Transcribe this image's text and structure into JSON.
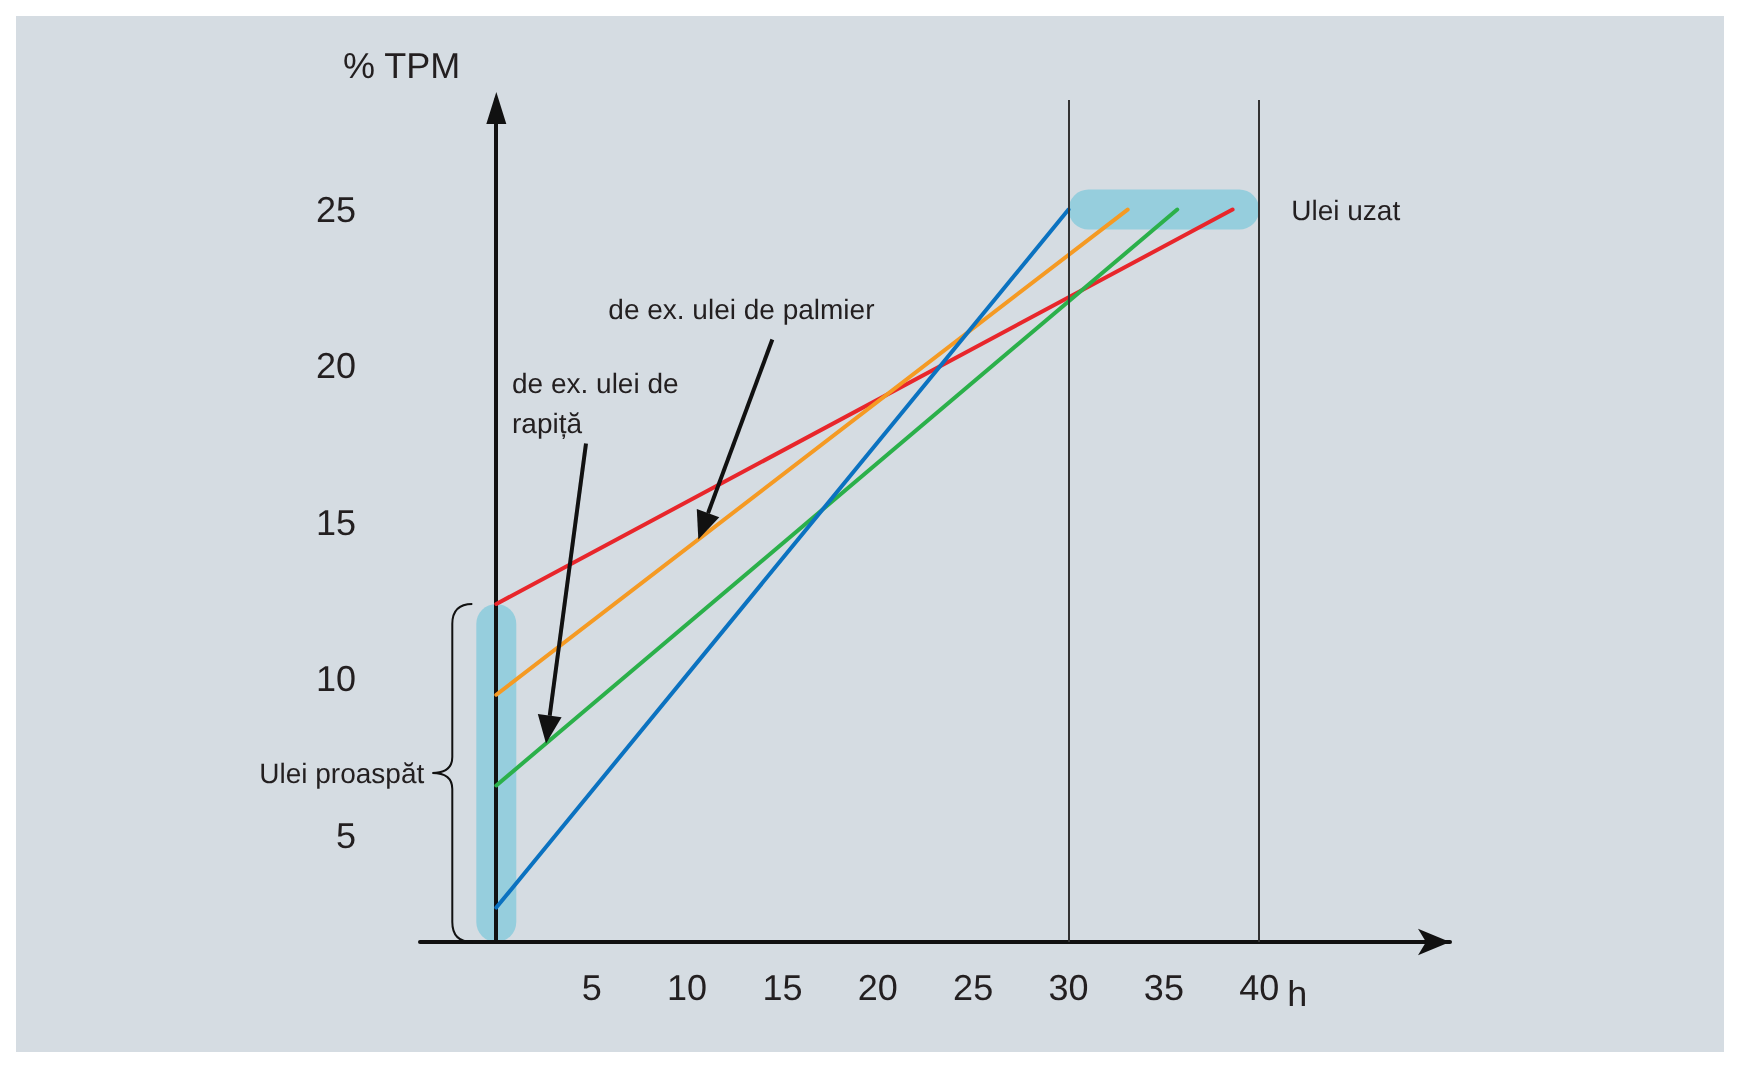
{
  "chart_data": {
    "type": "line",
    "ylabel": "% TPM",
    "xlabel": "h",
    "xlim": [
      -4,
      50
    ],
    "ylim": [
      1.6,
      28.5
    ],
    "xticks": [
      5,
      10,
      15,
      20,
      25,
      30,
      35,
      40
    ],
    "yticks": [
      5,
      10,
      15,
      20,
      25
    ],
    "grid": false,
    "marker": "none",
    "line_style": "solid",
    "series": [
      {
        "color": "#e8262b",
        "x": [
          0,
          38.6
        ],
        "values": [
          12.4,
          25
        ]
      },
      {
        "color": "#f59a23",
        "x": [
          0,
          33.1
        ],
        "values": [
          9.5,
          25
        ]
      },
      {
        "color": "#2bb04a",
        "x": [
          0,
          35.7
        ],
        "values": [
          6.6,
          25
        ]
      },
      {
        "color": "#0b72c0",
        "x": [
          0,
          30
        ],
        "values": [
          2.7,
          25
        ]
      }
    ],
    "ref_lines": [
      {
        "axis": "x",
        "value": 30,
        "color": "#333333"
      },
      {
        "axis": "x",
        "value": 40,
        "color": "#333333"
      }
    ],
    "annotations": [
      "Ulei proaspăt",
      {
        "text": "Ulei uzat",
        "x": 40,
        "y": 25
      },
      "de ex. ulei de palmier",
      "de ex. ulei de rapiță"
    ]
  }
}
